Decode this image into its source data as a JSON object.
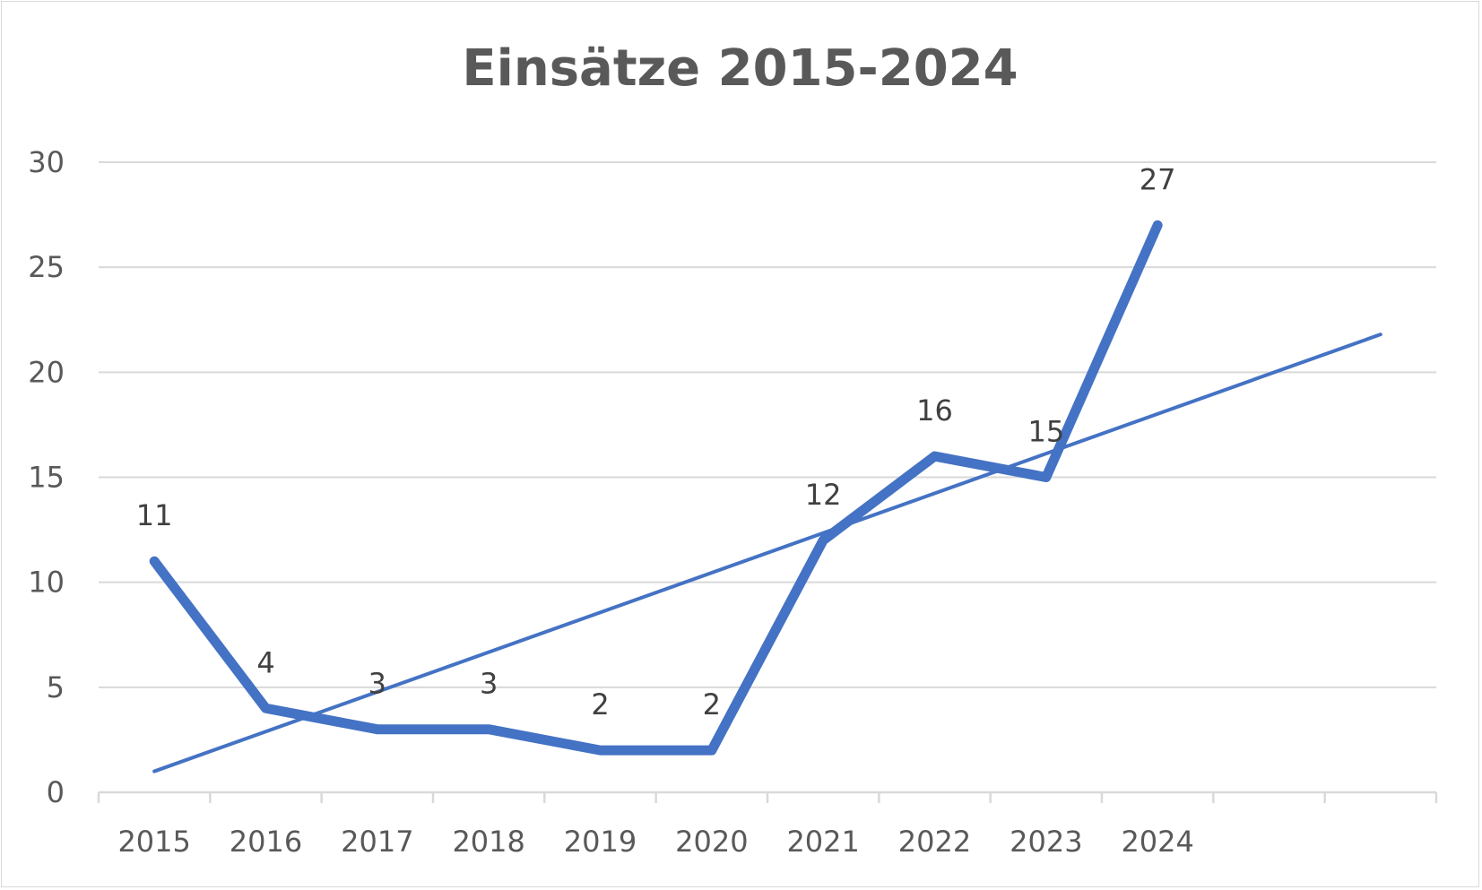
{
  "chart_data": {
    "type": "line",
    "title": "Einsätze 2015-2024",
    "xlabel": "",
    "ylabel": "",
    "categories": [
      "2015",
      "2016",
      "2017",
      "2018",
      "2019",
      "2020",
      "2021",
      "2022",
      "2023",
      "2024"
    ],
    "series": [
      {
        "values": [
          11,
          4,
          3,
          3,
          2,
          2,
          12,
          16,
          15,
          27
        ],
        "color": "#4472c4",
        "data_labels": [
          "11",
          "4",
          "3",
          "3",
          "2",
          "2",
          "12",
          "16",
          "15",
          "27"
        ]
      }
    ],
    "trendline": {
      "type": "linear",
      "color": "#4472c4",
      "start_value": 1,
      "end_value": 21.8,
      "forward_periods": 2
    },
    "y_ticks": [
      "0",
      "5",
      "10",
      "15",
      "20",
      "25",
      "30"
    ],
    "ylim": [
      0,
      30
    ],
    "grid": true,
    "legend": "none"
  }
}
